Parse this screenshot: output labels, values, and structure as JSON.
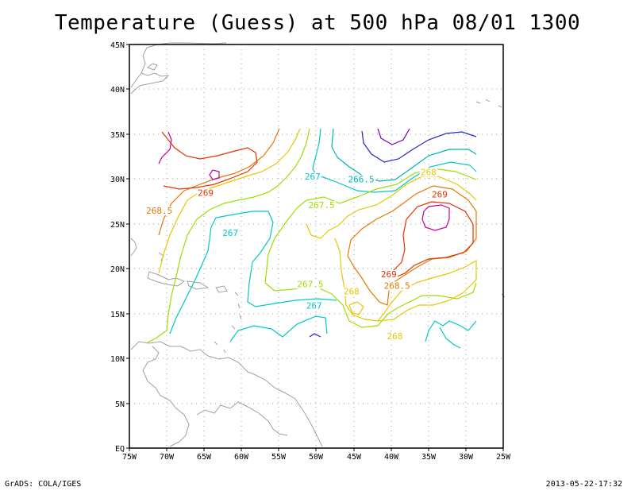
{
  "title": "Temperature (Guess) at 500 hPa 08/01 1300",
  "footer": {
    "left": "GrADS: COLA/IGES",
    "right": "2013-05-22-17:32"
  },
  "axes": {
    "lon_labels": [
      "75W",
      "70W",
      "65W",
      "60W",
      "55W",
      "50W",
      "45W",
      "40W",
      "35W",
      "30W",
      "25W"
    ],
    "lat_labels": [
      "EQ",
      "5N",
      "10N",
      "15N",
      "20N",
      "25N",
      "30N",
      "35N",
      "40N",
      "45N"
    ],
    "lon_range": [
      -75,
      -25
    ],
    "lat_range": [
      0,
      45
    ],
    "grid": "dotted"
  },
  "colors": {
    "land_outline": "#a0a0a0",
    "c266_5": "#00b4b4",
    "c267": "#00c8c8",
    "c267_5": "#a0dc00",
    "c268": "#e6c800",
    "c268_5": "#e67800",
    "c269": "#e63200",
    "c269_5": "#c80096",
    "c265_5": "#2828c8",
    "c266": "#7800b4"
  },
  "contour_labels": [
    {
      "text": "267",
      "lon": -50.5,
      "lat": 30.3,
      "color": "#00c8c8"
    },
    {
      "text": "266.5",
      "lon": -44,
      "lat": 30.0,
      "color": "#00b4b4"
    },
    {
      "text": "268",
      "lon": -35,
      "lat": 30.8,
      "color": "#e6c800"
    },
    {
      "text": "269",
      "lon": -64.8,
      "lat": 28.5,
      "color": "#e63200"
    },
    {
      "text": "267.5",
      "lon": -49.3,
      "lat": 27.1,
      "color": "#a0dc00"
    },
    {
      "text": "269",
      "lon": -33.5,
      "lat": 28.3,
      "color": "#e63200"
    },
    {
      "text": "268.5",
      "lon": -71,
      "lat": 26.5,
      "color": "#e67800"
    },
    {
      "text": "267",
      "lon": -61.5,
      "lat": 24.0,
      "color": "#00c8c8"
    },
    {
      "text": "269",
      "lon": -40.3,
      "lat": 19.4,
      "color": "#e63200"
    },
    {
      "text": "267.5",
      "lon": -50.8,
      "lat": 18.3,
      "color": "#a0dc00"
    },
    {
      "text": "268.5",
      "lon": -39.2,
      "lat": 18.1,
      "color": "#e67800"
    },
    {
      "text": "268",
      "lon": -45.3,
      "lat": 17.5,
      "color": "#e6c800"
    },
    {
      "text": "267",
      "lon": -50.3,
      "lat": 15.9,
      "color": "#00c8c8"
    },
    {
      "text": "268",
      "lon": -39.5,
      "lat": 12.5,
      "color": "#e6c800"
    }
  ]
}
